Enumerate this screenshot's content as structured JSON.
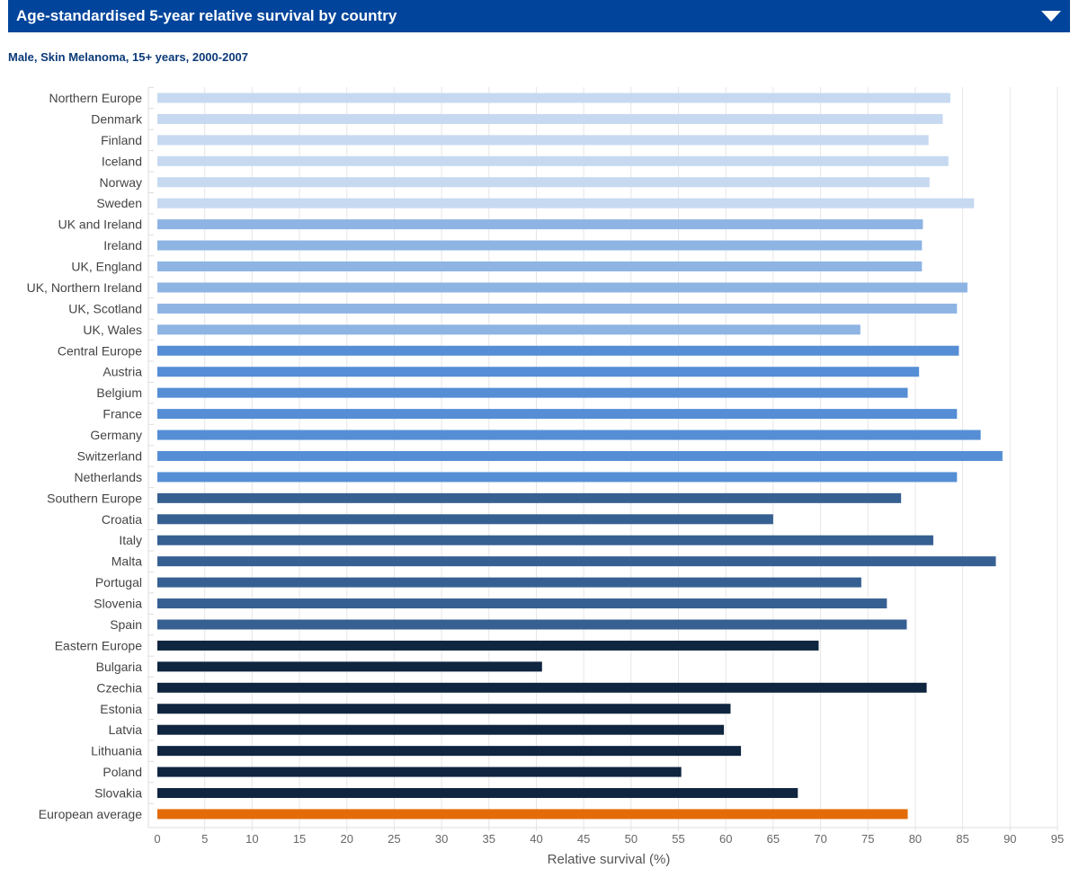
{
  "header": {
    "title": "Age-standardised 5-year relative survival by country",
    "toggle_icon": "caret-down-icon"
  },
  "subtitle": "Male, Skin Melanoma, 15+ years, 2000-2007",
  "colors": {
    "header_bg": "#00449b",
    "northern_europe": "#c6d9f1",
    "uk_ireland": "#8db4e3",
    "central_europe": "#558ed5",
    "southern_europe": "#376092",
    "eastern_europe": "#10253f",
    "european_average": "#e36c09"
  },
  "chart_data": {
    "type": "bar",
    "orientation": "horizontal",
    "xlabel": "Relative survival (%)",
    "xlim": [
      0,
      95
    ],
    "xticks": [
      0,
      5,
      10,
      15,
      20,
      25,
      30,
      35,
      40,
      45,
      50,
      55,
      60,
      65,
      70,
      75,
      80,
      85,
      90,
      95
    ],
    "grid": true,
    "categories": [
      "Northern Europe",
      "Denmark",
      "Finland",
      "Iceland",
      "Norway",
      "Sweden",
      "UK and Ireland",
      "Ireland",
      "UK, England",
      "UK, Northern Ireland",
      "UK, Scotland",
      "UK, Wales",
      "Central Europe",
      "Austria",
      "Belgium",
      "France",
      "Germany",
      "Switzerland",
      "Netherlands",
      "Southern Europe",
      "Croatia",
      "Italy",
      "Malta",
      "Portugal",
      "Slovenia",
      "Spain",
      "Eastern Europe",
      "Bulgaria",
      "Czechia",
      "Estonia",
      "Latvia",
      "Lithuania",
      "Poland",
      "Slovakia",
      "European average"
    ],
    "values": [
      83.7,
      82.9,
      81.4,
      83.5,
      81.5,
      86.2,
      80.8,
      80.7,
      80.7,
      85.5,
      84.4,
      74.2,
      84.6,
      80.4,
      79.2,
      84.4,
      86.9,
      89.2,
      84.4,
      78.5,
      65.0,
      81.9,
      88.5,
      74.3,
      77.0,
      79.1,
      69.8,
      40.6,
      81.2,
      60.5,
      59.8,
      61.6,
      55.3,
      67.6,
      79.2
    ],
    "groups": [
      "northern_europe",
      "northern_europe",
      "northern_europe",
      "northern_europe",
      "northern_europe",
      "northern_europe",
      "uk_ireland",
      "uk_ireland",
      "uk_ireland",
      "uk_ireland",
      "uk_ireland",
      "uk_ireland",
      "central_europe",
      "central_europe",
      "central_europe",
      "central_europe",
      "central_europe",
      "central_europe",
      "central_europe",
      "southern_europe",
      "southern_europe",
      "southern_europe",
      "southern_europe",
      "southern_europe",
      "southern_europe",
      "southern_europe",
      "eastern_europe",
      "eastern_europe",
      "eastern_europe",
      "eastern_europe",
      "eastern_europe",
      "eastern_europe",
      "eastern_europe",
      "eastern_europe",
      "european_average"
    ]
  }
}
